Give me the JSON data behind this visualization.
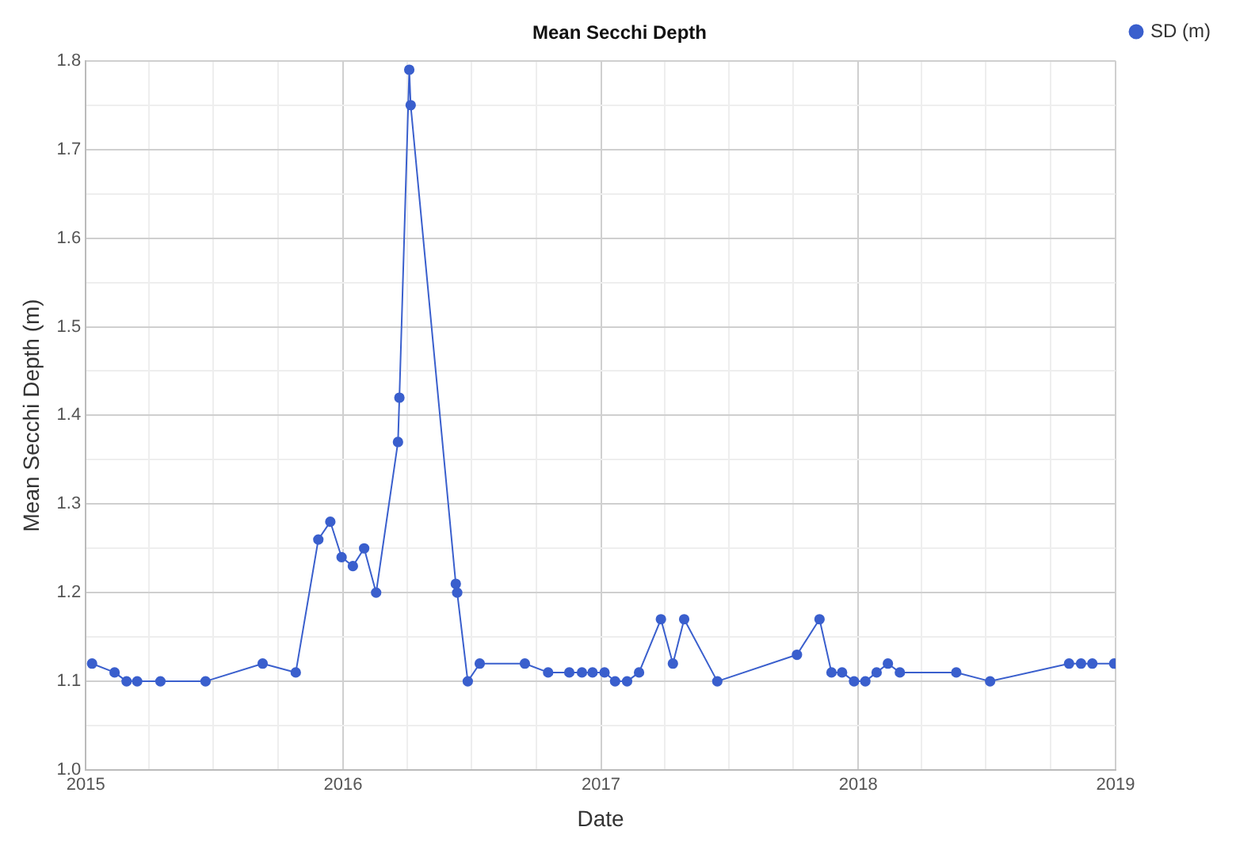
{
  "chart_data": {
    "type": "line",
    "title": "Mean Secchi Depth",
    "xlabel": "Date",
    "ylabel": "Mean Secchi Depth (m)",
    "x": [
      "2015-01-10",
      "2015-02-11",
      "2015-02-28",
      "2015-03-15",
      "2015-04-17",
      "2015-06-20",
      "2015-09-09",
      "2015-10-26",
      "2015-11-27",
      "2015-12-14",
      "2015-12-30",
      "2016-01-15",
      "2016-01-31",
      "2016-02-17",
      "2016-03-19",
      "2016-03-21",
      "2016-04-04",
      "2016-04-06",
      "2016-06-09",
      "2016-06-11",
      "2016-06-26",
      "2016-07-13",
      "2016-09-15",
      "2016-10-18",
      "2016-11-17",
      "2016-12-05",
      "2016-12-20",
      "2017-01-06",
      "2017-01-21",
      "2017-02-07",
      "2017-02-24",
      "2017-03-27",
      "2017-04-13",
      "2017-04-29",
      "2017-06-15",
      "2017-10-06",
      "2017-11-07",
      "2017-11-24",
      "2017-12-09",
      "2017-12-26",
      "2018-01-11",
      "2018-01-27",
      "2018-02-12",
      "2018-03-01",
      "2018-05-20",
      "2018-07-07",
      "2018-10-27",
      "2018-11-13",
      "2018-11-29",
      "2018-12-30"
    ],
    "series": [
      {
        "name": "SD (m)",
        "color": "#3a5fcd",
        "values": [
          1.12,
          1.11,
          1.1,
          1.1,
          1.1,
          1.1,
          1.12,
          1.11,
          1.26,
          1.28,
          1.24,
          1.23,
          1.25,
          1.2,
          1.37,
          1.42,
          1.79,
          1.75,
          1.21,
          1.2,
          1.1,
          1.12,
          1.12,
          1.11,
          1.11,
          1.11,
          1.11,
          1.11,
          1.1,
          1.1,
          1.11,
          1.17,
          1.12,
          1.17,
          1.1,
          1.13,
          1.17,
          1.11,
          1.11,
          1.1,
          1.1,
          1.11,
          1.12,
          1.11,
          1.11,
          1.1,
          1.12,
          1.12,
          1.12,
          1.12
        ]
      }
    ],
    "xlim": [
      "2015",
      "2019"
    ],
    "xticks": [
      "2015",
      {
        "value": "2015-04",
        "label": null
      },
      {
        "value": "2015-07",
        "label": null
      },
      {
        "value": "2015-10",
        "label": null
      },
      "2016",
      {
        "value": "2016-04",
        "label": null
      },
      {
        "value": "2016-07",
        "label": null
      },
      {
        "value": "2016-10",
        "label": null
      },
      "2017",
      {
        "value": "2017-04",
        "label": null
      },
      {
        "value": "2017-07",
        "label": null
      },
      {
        "value": "2017-10",
        "label": null
      },
      "2018",
      {
        "value": "2018-04",
        "label": null
      },
      {
        "value": "2018-07",
        "label": null
      },
      {
        "value": "2018-10",
        "label": null
      },
      "2019"
    ],
    "ylim": [
      1.0,
      1.8
    ],
    "yticks": [
      {
        "value": 1.0,
        "label": "1.0"
      },
      {
        "value": 1.05,
        "label": null
      },
      {
        "value": 1.1,
        "label": "1.1"
      },
      {
        "value": 1.15,
        "label": null
      },
      {
        "value": 1.2,
        "label": "1.2"
      },
      {
        "value": 1.25,
        "label": null
      },
      {
        "value": 1.3,
        "label": "1.3"
      },
      {
        "value": 1.35,
        "label": null
      },
      {
        "value": 1.4,
        "label": "1.4"
      },
      {
        "value": 1.45,
        "label": null
      },
      {
        "value": 1.5,
        "label": "1.5"
      },
      {
        "value": 1.55,
        "label": null
      },
      {
        "value": 1.6,
        "label": "1.6"
      },
      {
        "value": 1.65,
        "label": null
      },
      {
        "value": 1.7,
        "label": "1.7"
      },
      {
        "value": 1.75,
        "label": null
      },
      {
        "value": 1.8,
        "label": "1.8"
      }
    ],
    "grid": true,
    "legend": "top right",
    "marker": "circle",
    "line_style": "solid"
  }
}
